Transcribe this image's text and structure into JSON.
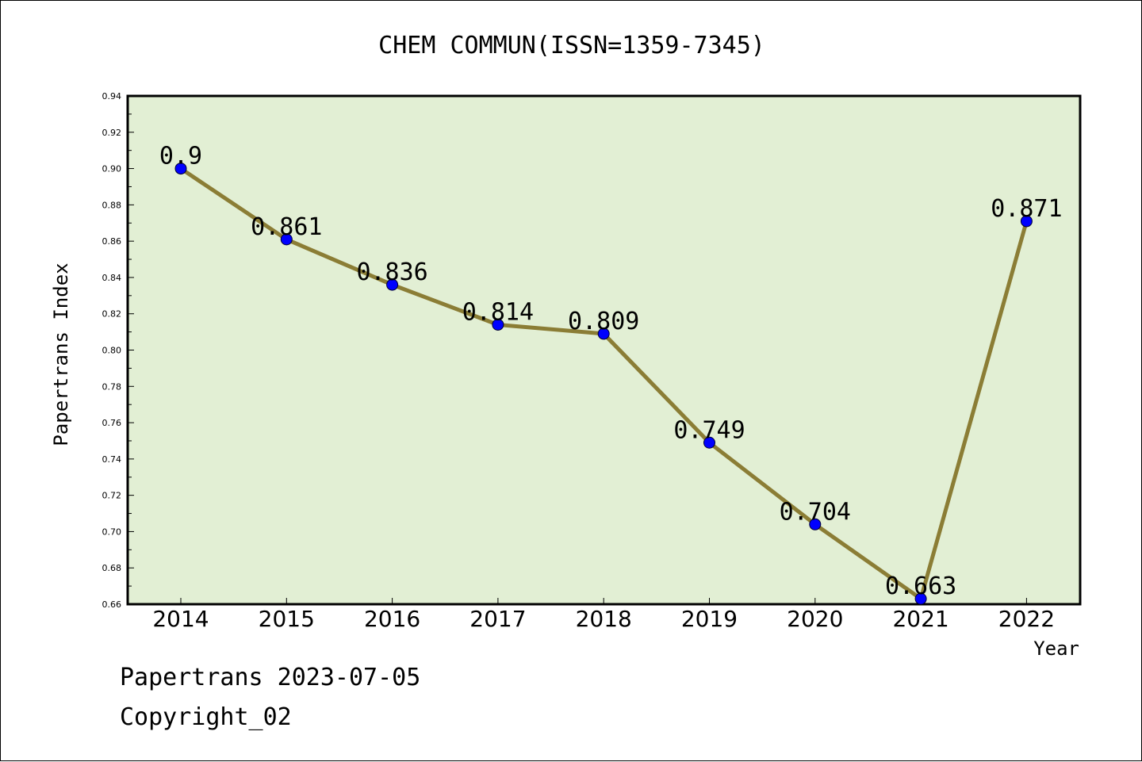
{
  "chart_data": {
    "type": "line",
    "title": "CHEM COMMUN(ISSN=1359-7345)",
    "xlabel": "Year",
    "ylabel": "Papertrans Index",
    "categories": [
      "2014",
      "2015",
      "2016",
      "2017",
      "2018",
      "2019",
      "2020",
      "2021",
      "2022"
    ],
    "values": [
      0.9,
      0.861,
      0.836,
      0.814,
      0.809,
      0.749,
      0.704,
      0.663,
      0.871
    ],
    "value_labels": [
      "0.9",
      "0.861",
      "0.836",
      "0.814",
      "0.809",
      "0.749",
      "0.704",
      "0.663",
      "0.871"
    ],
    "ylim": [
      0.66,
      0.94
    ],
    "yticks": [
      "0.66",
      "0.68",
      "0.70",
      "0.72",
      "0.74",
      "0.76",
      "0.78",
      "0.80",
      "0.82",
      "0.84",
      "0.86",
      "0.88",
      "0.90",
      "0.92",
      "0.94"
    ],
    "grid": false,
    "legend": "none",
    "colors": {
      "plot_background": "#e2efd4",
      "line": "#8b7d35",
      "marker": "#0000ff"
    }
  },
  "footer": {
    "line1": "Papertrans 2023-07-05",
    "line2": "Copyright_02"
  }
}
